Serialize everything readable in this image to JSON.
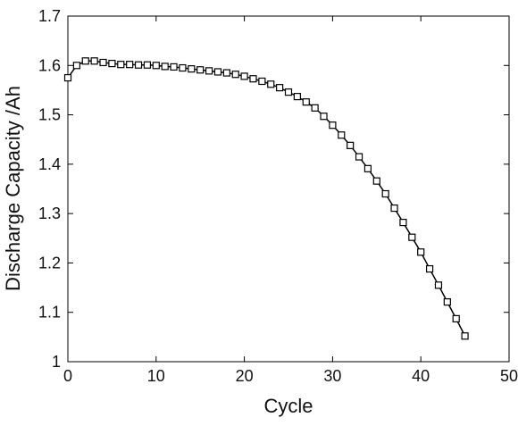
{
  "chart_data": {
    "type": "line",
    "title": "",
    "xlabel": "Cycle",
    "ylabel": "Discharge Capacity /Ah",
    "xlim": [
      0,
      50
    ],
    "ylim": [
      1,
      1.7
    ],
    "xticks": [
      "0",
      "10",
      "20",
      "30",
      "40",
      "50"
    ],
    "yticks": [
      "1",
      "1.1",
      "1.2",
      "1.3",
      "1.4",
      "1.5",
      "1.6",
      "1.7"
    ],
    "grid": false,
    "legend": "none",
    "marker": "square",
    "line_color": "#000000",
    "series": [
      {
        "x": [
          0,
          1,
          2,
          3,
          4,
          5,
          6,
          7,
          8,
          9,
          10,
          11,
          12,
          13,
          14,
          15,
          16,
          17,
          18,
          19,
          20,
          21,
          22,
          23,
          24,
          25,
          26,
          27,
          28,
          29,
          30,
          31,
          32,
          33,
          34,
          35,
          36,
          37,
          38,
          39,
          40,
          41,
          42,
          43,
          44,
          45
        ],
        "values": [
          1.575,
          1.6,
          1.609,
          1.609,
          1.606,
          1.604,
          1.602,
          1.602,
          1.601,
          1.601,
          1.6,
          1.598,
          1.597,
          1.595,
          1.593,
          1.591,
          1.589,
          1.587,
          1.585,
          1.582,
          1.578,
          1.573,
          1.568,
          1.562,
          1.555,
          1.546,
          1.537,
          1.526,
          1.514,
          1.497,
          1.479,
          1.459,
          1.438,
          1.415,
          1.391,
          1.366,
          1.34,
          1.311,
          1.282,
          1.252,
          1.222,
          1.188,
          1.155,
          1.121,
          1.087,
          1.052
        ]
      }
    ]
  }
}
